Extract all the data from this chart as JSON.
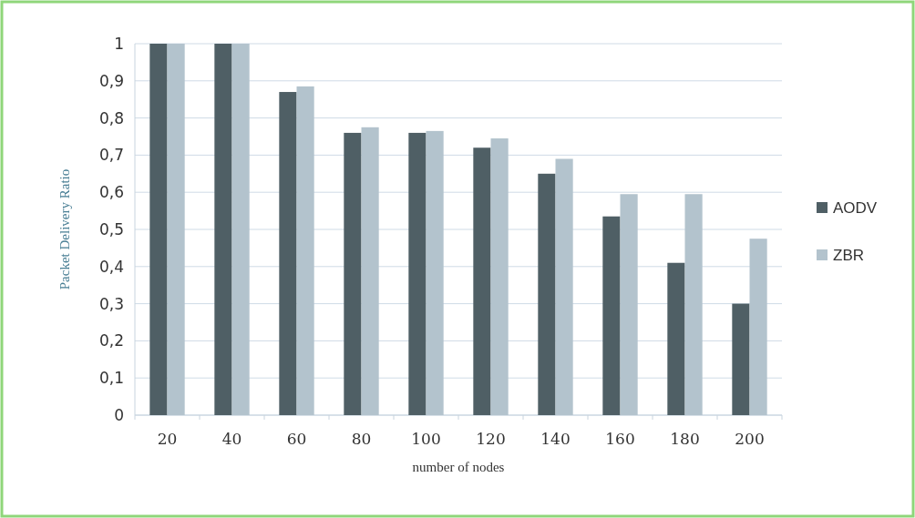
{
  "chart_data": {
    "type": "bar",
    "xlabel": "number of nodes",
    "ylabel": "Packet Delivery Ratio",
    "categories": [
      "20",
      "40",
      "60",
      "80",
      "100",
      "120",
      "140",
      "160",
      "180",
      "200"
    ],
    "series": [
      {
        "name": "AODV",
        "color": "#4f5f65",
        "values": [
          1,
          1,
          0.87,
          0.76,
          0.76,
          0.72,
          0.65,
          0.535,
          0.41,
          0.3
        ]
      },
      {
        "name": "ZBR",
        "color": "#b3c3cd",
        "values": [
          1,
          1,
          0.885,
          0.775,
          0.765,
          0.745,
          0.69,
          0.595,
          0.595,
          0.475
        ]
      }
    ],
    "ylim": [
      0,
      1
    ],
    "yticks": [
      0,
      {
        "value": 0.1,
        "label": "0,1"
      },
      {
        "value": 0.2,
        "label": "0,2"
      },
      {
        "value": 0.3,
        "label": "0,3"
      },
      {
        "value": 0.4,
        "label": "0,4"
      },
      {
        "value": 0.5,
        "label": "0,5"
      },
      {
        "value": 0.6,
        "label": "0,6"
      },
      {
        "value": 0.7,
        "label": "0,7"
      },
      {
        "value": 0.8,
        "label": "0,8"
      },
      {
        "value": 0.9,
        "label": "0,9"
      },
      1
    ],
    "grid": "y",
    "legend": "right"
  }
}
